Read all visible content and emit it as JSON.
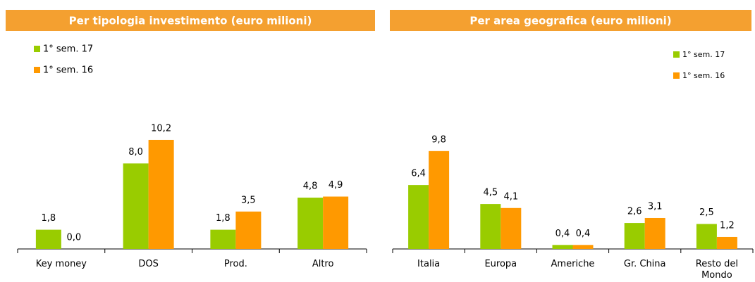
{
  "chart_data": [
    {
      "type": "bar",
      "title": "Per tipologia investimento (euro milioni)",
      "categories": [
        "Key money",
        "DOS",
        "Prod.",
        "Altro"
      ],
      "legend": "top-left",
      "series": [
        {
          "name": "1° sem. 17",
          "color": "#99cc00",
          "values": [
            1.8,
            8.0,
            1.8,
            4.8
          ],
          "value_labels": [
            "1,8",
            "8,0",
            "1,8",
            "4,8"
          ]
        },
        {
          "name": "1° sem. 16",
          "color": "#ff9900",
          "values": [
            0.0,
            10.2,
            3.5,
            4.9
          ],
          "value_labels": [
            "0,0",
            "10,2",
            "3,5",
            "4,9"
          ]
        }
      ]
    },
    {
      "type": "bar",
      "title": "Per area geografica (euro milioni)",
      "categories": [
        "Italia",
        "Europa",
        "Americhe",
        "Gr. China",
        "Resto del Mondo"
      ],
      "legend": "top-right",
      "series": [
        {
          "name": "1° sem. 17",
          "color": "#99cc00",
          "values": [
            6.4,
            4.5,
            0.4,
            2.6,
            2.5
          ],
          "value_labels": [
            "6,4",
            "4,5",
            "0,4",
            "2,6",
            "2,5"
          ]
        },
        {
          "name": "1° sem. 16",
          "color": "#ff9900",
          "values": [
            9.8,
            4.1,
            0.4,
            3.1,
            1.2
          ],
          "value_labels": [
            "9,8",
            "4,1",
            "0,4",
            "3,1",
            "1,2"
          ]
        }
      ]
    }
  ]
}
